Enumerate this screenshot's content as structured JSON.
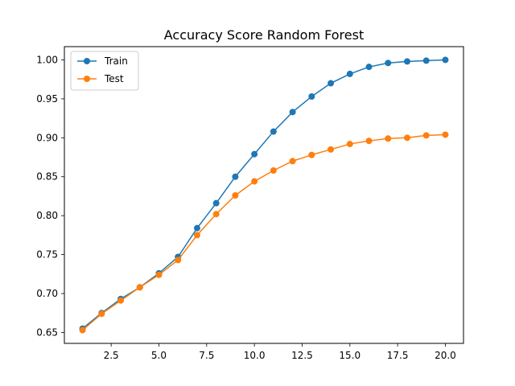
{
  "chart_data": {
    "type": "line",
    "title": "Accuracy Score Random Forest",
    "xlabel": "",
    "ylabel": "",
    "xlim": [
      0.05,
      20.95
    ],
    "ylim": [
      0.636,
      1.017
    ],
    "xticks": [
      2.5,
      5.0,
      7.5,
      10.0,
      12.5,
      15.0,
      17.5,
      20.0
    ],
    "xtick_labels": [
      "2.5",
      "5.0",
      "7.5",
      "10.0",
      "12.5",
      "15.0",
      "17.5",
      "20.0"
    ],
    "yticks": [
      0.65,
      0.7,
      0.75,
      0.8,
      0.85,
      0.9,
      0.95,
      1.0
    ],
    "ytick_labels": [
      "0.65",
      "0.70",
      "0.75",
      "0.80",
      "0.85",
      "0.90",
      "0.95",
      "1.00"
    ],
    "grid": false,
    "legend_position": "top-left",
    "x": [
      1,
      2,
      3,
      4,
      5,
      6,
      7,
      8,
      9,
      10,
      11,
      12,
      13,
      14,
      15,
      16,
      17,
      18,
      19,
      20
    ],
    "series": [
      {
        "name": "Train",
        "color": "#1f77b4",
        "values": [
          0.655,
          0.675,
          0.693,
          0.708,
          0.726,
          0.747,
          0.784,
          0.816,
          0.85,
          0.879,
          0.908,
          0.933,
          0.953,
          0.97,
          0.982,
          0.991,
          0.996,
          0.998,
          0.999,
          1.0
        ]
      },
      {
        "name": "Test",
        "color": "#ff7f0e",
        "values": [
          0.653,
          0.674,
          0.691,
          0.708,
          0.724,
          0.743,
          0.775,
          0.802,
          0.826,
          0.844,
          0.858,
          0.87,
          0.878,
          0.885,
          0.892,
          0.896,
          0.899,
          0.9,
          0.903,
          0.904
        ]
      }
    ]
  }
}
